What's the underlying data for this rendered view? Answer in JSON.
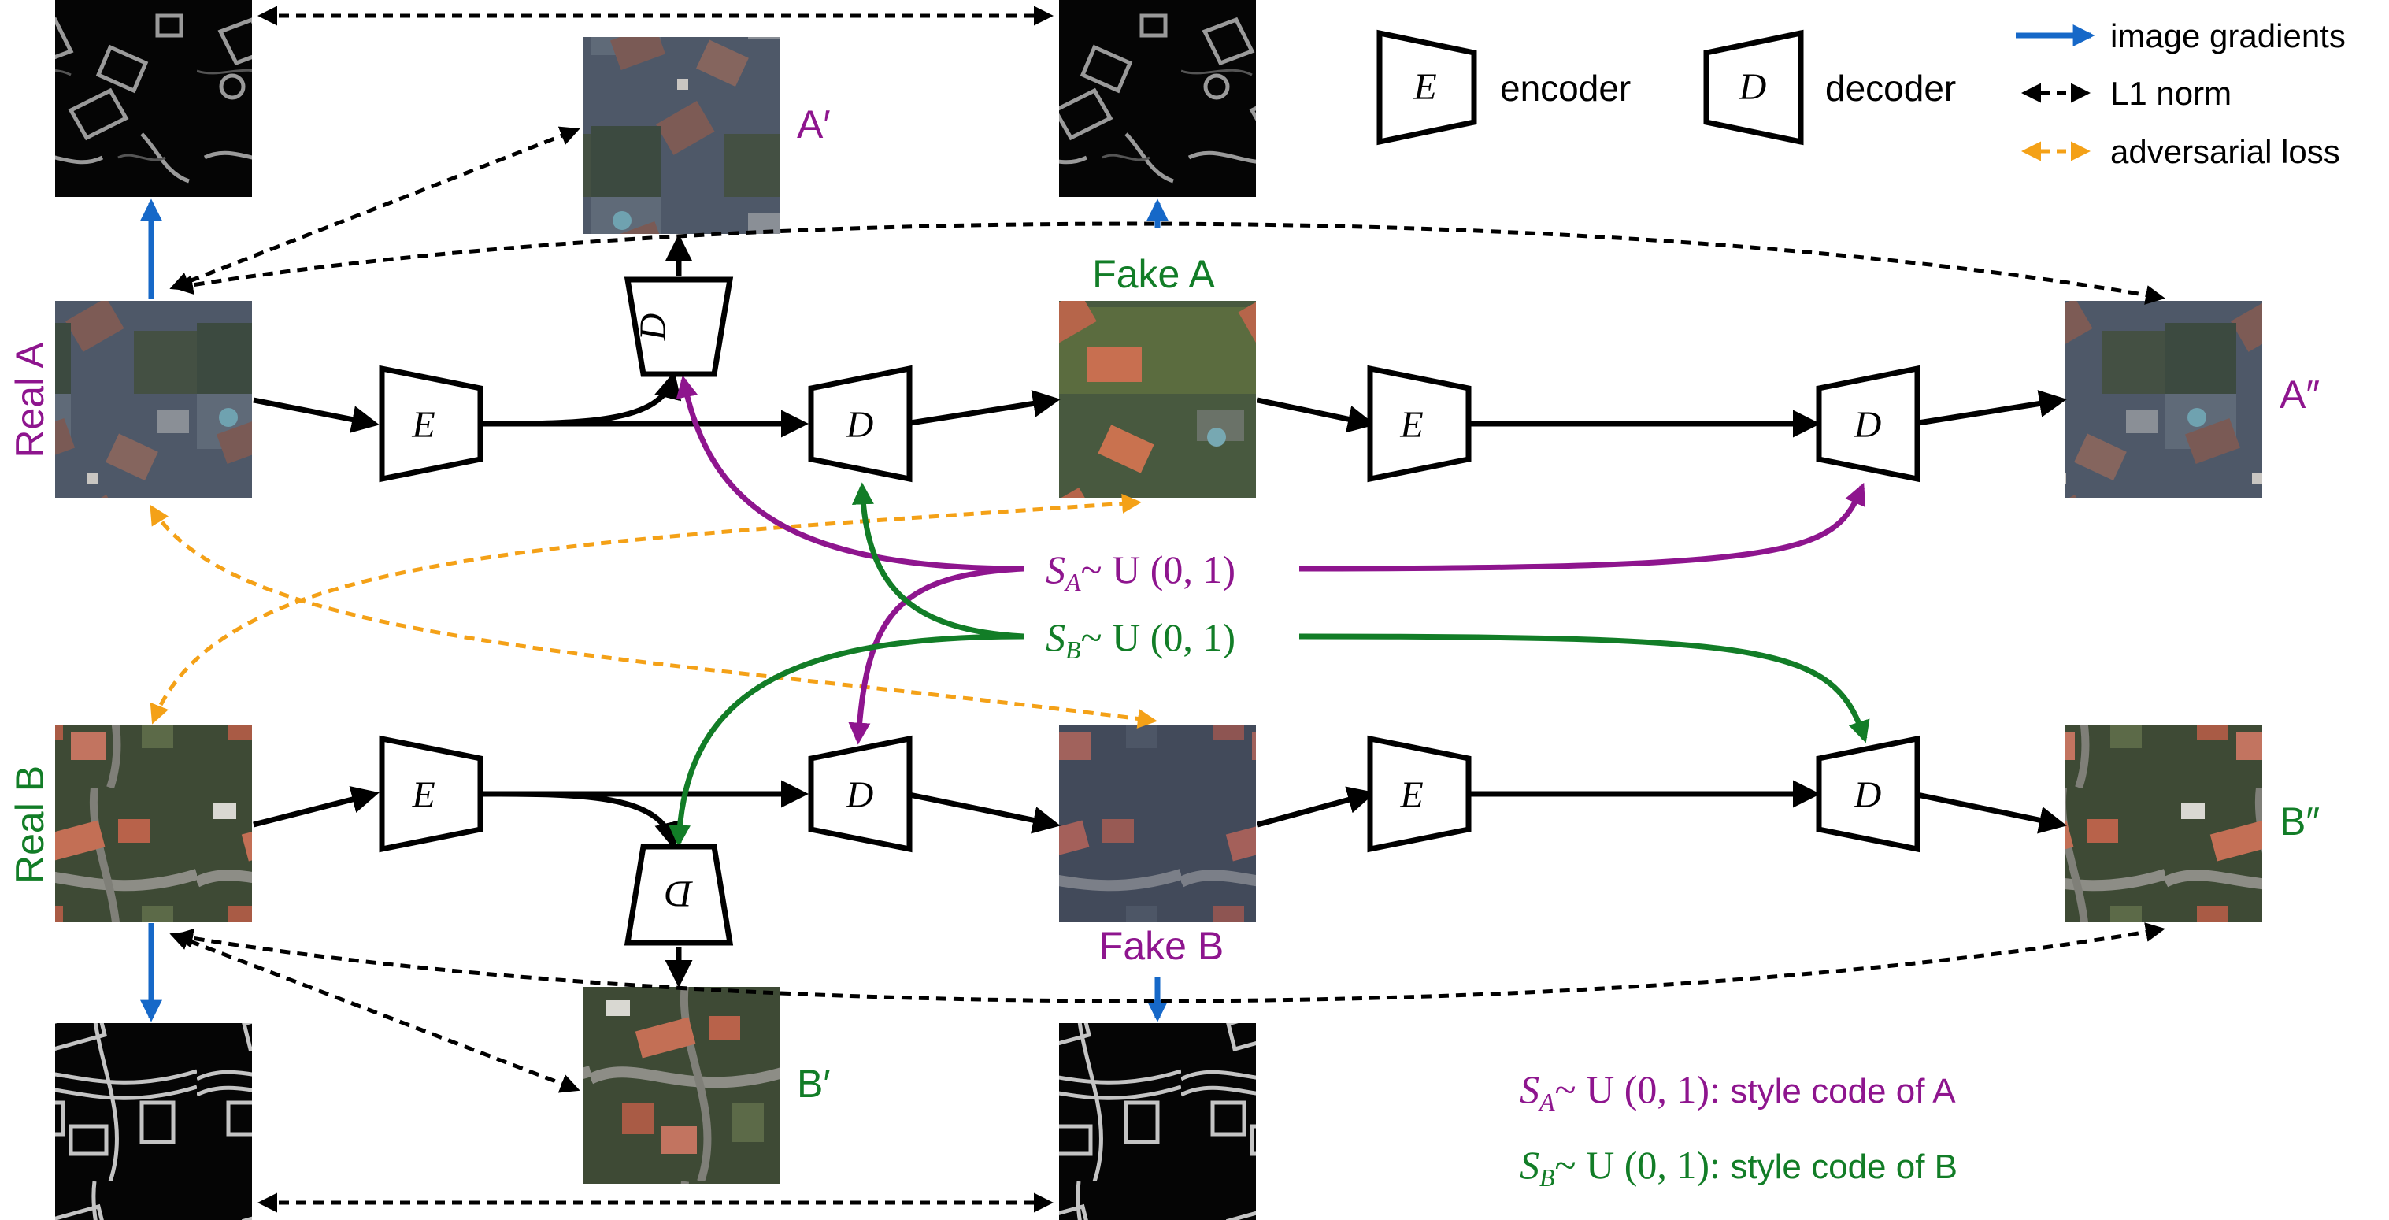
{
  "legend": {
    "encoder_symbol": "E",
    "encoder_label": "encoder",
    "decoder_symbol": "D",
    "decoder_label": "decoder",
    "gradients_label": "image gradients",
    "l1_label": "L1 norm",
    "adversarial_label": "adversarial loss"
  },
  "blocks": {
    "encoder": "E",
    "decoder": "D",
    "discriminator": "D"
  },
  "images": {
    "real_a": "Real A",
    "real_b": "Real B",
    "fake_a": "Fake A",
    "fake_b": "Fake B",
    "a_prime": "A′",
    "b_prime": "B′",
    "a_double_prime": "A″",
    "b_double_prime": "B″"
  },
  "codes": {
    "sa": {
      "sym": "S",
      "sub": "A",
      "dist": "~ U (0, 1)"
    },
    "sb": {
      "sym": "S",
      "sub": "B",
      "dist": "~ U (0, 1)"
    }
  },
  "footnotes": {
    "sa_desc": "style code of A",
    "sb_desc": "style code of B"
  },
  "colors": {
    "purple": "#8e158e",
    "green": "#127d27",
    "gradient_blue": "#1668c8",
    "adversarial_orange": "#f4a117",
    "black": "#000000"
  },
  "icons": {
    "image_tile": "aerial-photo-icon",
    "gradient_tile": "edge-map-icon"
  }
}
